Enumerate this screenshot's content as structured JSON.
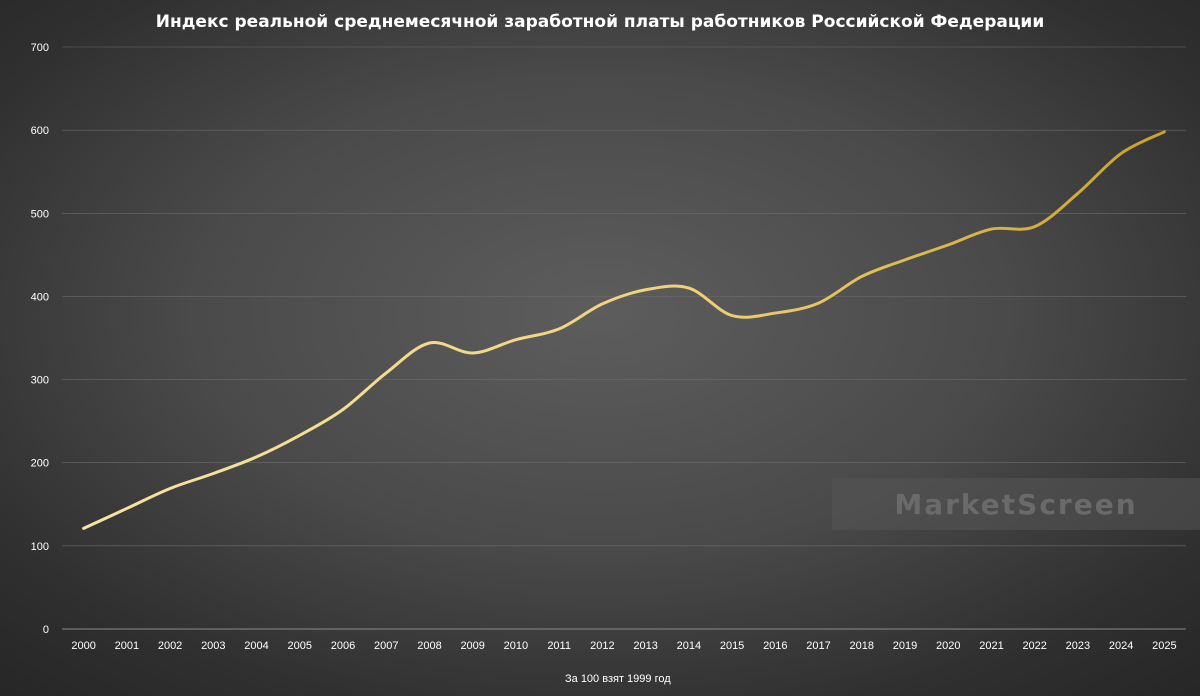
{
  "chart_data": {
    "type": "line",
    "title": "Индекс реальной среднемесячной заработной платы работников Российской Федерации",
    "x": [
      "2000",
      "2001",
      "2002",
      "2003",
      "2004",
      "2005",
      "2006",
      "2007",
      "2008",
      "2009",
      "2010",
      "2011",
      "2012",
      "2013",
      "2014",
      "2015",
      "2016",
      "2017",
      "2018",
      "2019",
      "2020",
      "2021",
      "2022",
      "2023",
      "2024",
      "2025"
    ],
    "series": [
      {
        "name": "За 100 взят 1999 год",
        "values": [
          121,
          145,
          169,
          187,
          207,
          233,
          264,
          308,
          344,
          332,
          348,
          361,
          391,
          408,
          410,
          377,
          380,
          392,
          424,
          444,
          462,
          481,
          484,
          524,
          572,
          598
        ],
        "color_start": "#f7e4a3",
        "color_end": "#c9a227"
      }
    ],
    "y_ticks": [
      "0",
      "100",
      "200",
      "300",
      "400",
      "500",
      "600",
      "700"
    ],
    "ylim": [
      0,
      700
    ],
    "grid": true,
    "legend": "bottom-center",
    "watermark": "MarketScreen"
  }
}
